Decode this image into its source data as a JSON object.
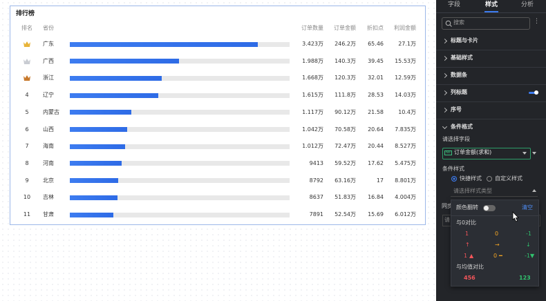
{
  "table": {
    "title": "排行榜",
    "columns": [
      "排名",
      "省份",
      "订单数量",
      "订单金额",
      "折扣点",
      "利润金额"
    ],
    "bar_range": [
      0,
      40000
    ],
    "rows": [
      {
        "rank": null,
        "province": "广东",
        "qty": {
          "value": 34230,
          "label": "3.423万"
        },
        "amount": "246.2万",
        "discount": "65.46",
        "profit": "27.1万"
      },
      {
        "rank": null,
        "province": "广西",
        "qty": {
          "value": 19880,
          "label": "1.988万"
        },
        "amount": "140.3万",
        "discount": "39.45",
        "profit": "15.53万"
      },
      {
        "rank": null,
        "province": "浙江",
        "qty": {
          "value": 16680,
          "label": "1.668万"
        },
        "amount": "120.3万",
        "discount": "32.01",
        "profit": "12.59万"
      },
      {
        "rank": 4,
        "province": "辽宁",
        "qty": {
          "value": 16150,
          "label": "1.615万"
        },
        "amount": "111.8万",
        "discount": "28.53",
        "profit": "14.03万"
      },
      {
        "rank": 5,
        "province": "内蒙古",
        "qty": {
          "value": 11170,
          "label": "1.117万"
        },
        "amount": "90.12万",
        "discount": "21.58",
        "profit": "10.4万"
      },
      {
        "rank": 6,
        "province": "山西",
        "qty": {
          "value": 10420,
          "label": "1.042万"
        },
        "amount": "70.58万",
        "discount": "20.64",
        "profit": "7.835万"
      },
      {
        "rank": 7,
        "province": "海南",
        "qty": {
          "value": 10120,
          "label": "1.012万"
        },
        "amount": "72.47万",
        "discount": "20.44",
        "profit": "8.527万"
      },
      {
        "rank": 8,
        "province": "河南",
        "qty": {
          "value": 9413,
          "label": "9413"
        },
        "amount": "59.52万",
        "discount": "17.62",
        "profit": "5.475万"
      },
      {
        "rank": 9,
        "province": "北京",
        "qty": {
          "value": 8792,
          "label": "8792"
        },
        "amount": "63.16万",
        "discount": "17",
        "profit": "8.801万"
      },
      {
        "rank": 10,
        "province": "吉林",
        "qty": {
          "value": 8637,
          "label": "8637"
        },
        "amount": "51.83万",
        "discount": "16.84",
        "profit": "4.004万"
      },
      {
        "rank": 11,
        "province": "甘肃",
        "qty": {
          "value": 7891,
          "label": "7891"
        },
        "amount": "52.54万",
        "discount": "15.69",
        "profit": "6.012万"
      }
    ]
  },
  "panel": {
    "tabs": [
      "字段",
      "样式",
      "分析"
    ],
    "active_tab": 1,
    "search_placeholder": "搜索",
    "sections": [
      "标题与卡片",
      "基础样式",
      "数据条",
      "列标题",
      "序号",
      "条件格式"
    ],
    "field_label": "请选择字段",
    "field_tag": "NII",
    "field_value": "订单金额(求和)",
    "style_label": "条件样式",
    "radios": [
      "快捷样式",
      "自定义样式"
    ],
    "radio_selected": 0,
    "type_placeholder": "请选择样式类型",
    "behind_label": "同步",
    "behind_input": "请",
    "popup": {
      "flip_label": "颜色翻转",
      "clear": "清空",
      "group_zero": "与0对比",
      "samples": [
        "1",
        "0",
        "-1"
      ],
      "group_mean": "与均值对比",
      "mean_high": "456",
      "mean_low": "123"
    }
  }
}
